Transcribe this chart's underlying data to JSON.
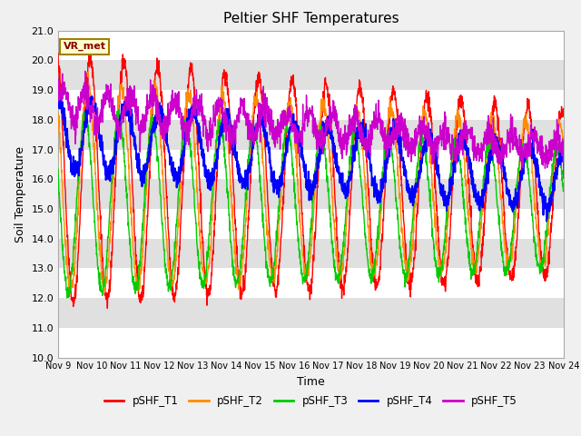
{
  "title": "Peltier SHF Temperatures",
  "ylabel": "Soil Temperature",
  "xlabel": "Time",
  "annotation": "VR_met",
  "ylim": [
    10.0,
    21.0
  ],
  "yticks": [
    10.0,
    11.0,
    12.0,
    13.0,
    14.0,
    15.0,
    16.0,
    17.0,
    18.0,
    19.0,
    20.0,
    21.0
  ],
  "xlim_days": [
    0,
    15
  ],
  "xtick_labels": [
    "Nov 9",
    "Nov 10",
    "Nov 11",
    "Nov 12",
    "Nov 13",
    "Nov 14",
    "Nov 15",
    "Nov 16",
    "Nov 17",
    "Nov 18",
    "Nov 19",
    "Nov 20",
    "Nov 21",
    "Nov 22",
    "Nov 23",
    "Nov 24"
  ],
  "xtick_positions": [
    0,
    1,
    2,
    3,
    4,
    5,
    6,
    7,
    8,
    9,
    10,
    11,
    12,
    13,
    14,
    15
  ],
  "colors": {
    "pSHF_T1": "#ff0000",
    "pSHF_T2": "#ff8c00",
    "pSHF_T3": "#00cc00",
    "pSHF_T4": "#0000ff",
    "pSHF_T5": "#cc00cc"
  },
  "legend_labels": [
    "pSHF_T1",
    "pSHF_T2",
    "pSHF_T3",
    "pSHF_T4",
    "pSHF_T5"
  ],
  "fig_bg_color": "#f0f0f0",
  "band_colors": [
    "#ffffff",
    "#e0e0e0"
  ],
  "title_fontsize": 11,
  "axis_fontsize": 9,
  "tick_fontsize": 8
}
